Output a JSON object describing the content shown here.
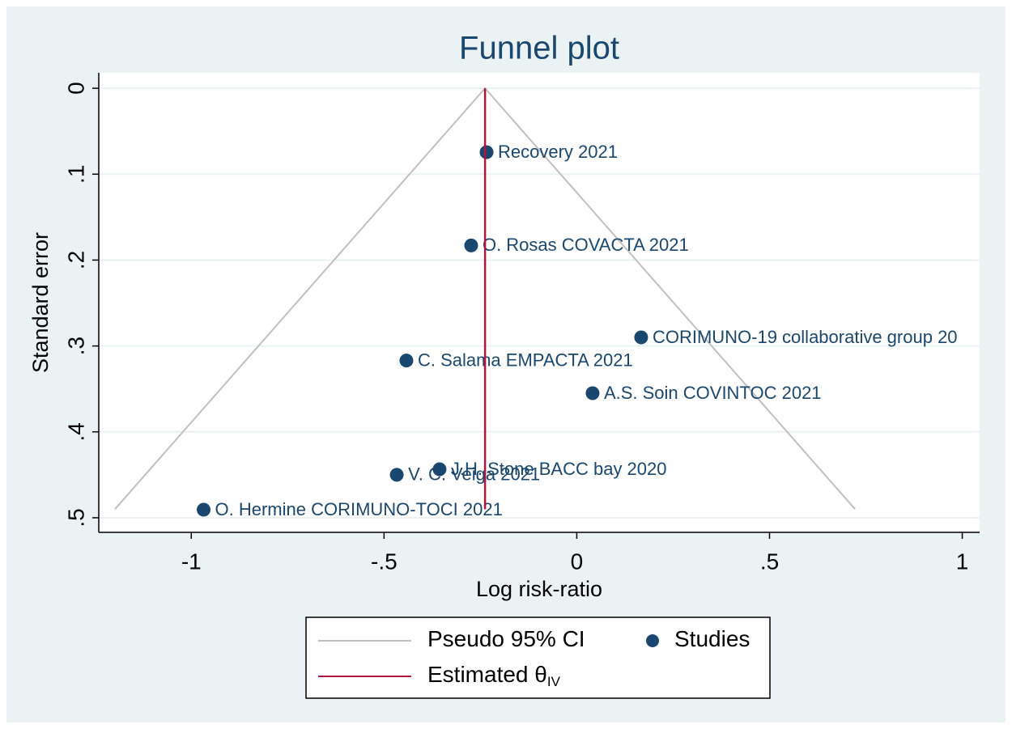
{
  "chart_data": {
    "type": "funnel",
    "title": "Funnel plot",
    "x_label": "Log risk-ratio",
    "y_label": "Standard error",
    "xlim": [
      -1.24,
      1.045
    ],
    "ylim": [
      -0.018,
      0.517
    ],
    "y_reversed": true,
    "grid": true,
    "xticks": [
      -1,
      {
        "value": -0.5,
        "label": "-.5"
      },
      0,
      {
        "value": 0.5,
        "label": ".5"
      },
      1
    ],
    "yticks": [
      0,
      {
        "value": 0.1,
        "label": ".1"
      },
      {
        "value": 0.2,
        "label": ".2"
      },
      {
        "value": 0.3,
        "label": ".3"
      },
      {
        "value": 0.4,
        "label": ".4"
      },
      {
        "value": 0.5,
        "label": ".5"
      }
    ],
    "series": [
      {
        "name": "Pseudo 95% CI",
        "type": "line",
        "color": "#c0c0c0",
        "x": [
          -1.198,
          -0.238,
          0.722
        ],
        "values": [
          0.49,
          0,
          0.49
        ]
      },
      {
        "name": "Studies",
        "type": "scatter",
        "color": "#1a476f",
        "x": [
          -0.234,
          -0.274,
          0.167,
          -0.442,
          0.041,
          -0.356,
          -0.467,
          -0.968
        ],
        "values": [
          0.0744,
          0.183,
          0.29,
          0.317,
          0.355,
          0.4435,
          0.45,
          0.4906
        ],
        "labels": [
          "Recovery 2021",
          "O. Rosas COVACTA 2021",
          "CORIMUNO-19 collaborative group 20",
          "C. Salama EMPACTA 2021",
          "A.S. Soin COVINTOC 2021",
          "J.H. Stone BACC bay 2020",
          "V. C. Veiga 2021",
          "O. Hermine CORIMUNO-TOCI 2021"
        ]
      },
      {
        "name": "Estimated θ",
        "name_subscript": "IV",
        "type": "line",
        "color": "#b0163d",
        "x": [
          -0.238,
          -0.238
        ],
        "values": [
          0,
          0.49
        ]
      }
    ]
  }
}
